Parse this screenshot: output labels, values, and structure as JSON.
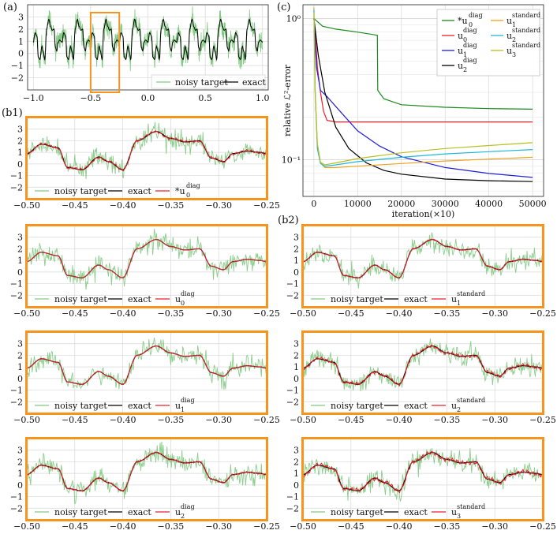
{
  "panel_labels": {
    "a": "(a)",
    "b1": "(b1)",
    "b2": "(b2)",
    "c": "(c)"
  },
  "legend_labels": {
    "noisy": "noisy target",
    "exact": "exact"
  },
  "chart_data": [
    {
      "id": "a",
      "type": "line",
      "title": "",
      "xlim": [
        -1.05,
        1.05
      ],
      "ylim": [
        -3.0,
        4.0
      ],
      "xticks": [
        -1.0,
        -0.5,
        0.0,
        0.5,
        1.0
      ],
      "xtick_labels": [
        "−1.0",
        "−0.5",
        "0.0",
        "0.5",
        "1.0"
      ],
      "yticks": [
        -2,
        -1,
        0,
        1,
        2,
        3
      ],
      "ytick_labels": [
        "−2",
        "−1",
        "0",
        "1",
        "2",
        "3"
      ],
      "series": [
        {
          "name": "noisy target",
          "color": "#5cb85c"
        },
        {
          "name": "exact",
          "color": "#000000"
        }
      ],
      "highlight_x_range": [
        -0.5,
        -0.25
      ],
      "highlight_color": "#f7941d",
      "legend_loc": "lower right"
    },
    {
      "id": "b1",
      "type": "line",
      "xlim": [
        -0.5,
        -0.25
      ],
      "ylim": [
        -3.0,
        4.0
      ],
      "xticks": [
        -0.5,
        -0.45,
        -0.4,
        -0.35,
        -0.3,
        -0.25
      ],
      "xtick_labels": [
        "−0.50",
        "−0.45",
        "−0.40",
        "−0.35",
        "−0.30",
        "−0.25"
      ],
      "yticks": [
        -2,
        -1,
        0,
        1,
        2,
        3
      ],
      "ytick_labels": [
        "−2",
        "−1",
        "0",
        "1",
        "2",
        "3"
      ],
      "series": [
        {
          "name": "noisy target",
          "color": "#5cb85c"
        },
        {
          "name": "exact",
          "color": "#000000"
        },
        {
          "name": "*u0 diag",
          "color": "#e8202a"
        }
      ],
      "fit_label": {
        "star": "*",
        "base": "u",
        "sub": "0",
        "sup": "diag"
      },
      "fit_quality": 0.35,
      "frame_color": "#f7941d"
    },
    {
      "id": "u0diag",
      "type": "line",
      "xlim": [
        -0.5,
        -0.25
      ],
      "ylim": [
        -3.0,
        4.0
      ],
      "xtick_labels": [
        "−0.50",
        "−0.45",
        "−0.40",
        "−0.35",
        "−0.30",
        "−0.25"
      ],
      "ytick_labels": [
        "−2",
        "−1",
        "0",
        "1",
        "2",
        "3"
      ],
      "fit_label": {
        "star": "",
        "base": "u",
        "sub": "0",
        "sup": "diag"
      },
      "fit_quality": 0.0,
      "frame_color": "#f7941d"
    },
    {
      "id": "u1std",
      "type": "line",
      "xlim": [
        -0.5,
        -0.25
      ],
      "ylim": [
        -3.0,
        4.0
      ],
      "xtick_labels": [
        "−0.50",
        "−0.45",
        "−0.40",
        "−0.35",
        "−0.30",
        "−0.25"
      ],
      "ytick_labels": [
        "−2",
        "−1",
        "0",
        "1",
        "2",
        "3"
      ],
      "fit_label": {
        "star": "",
        "base": "u",
        "sub": "1",
        "sup": "standard"
      },
      "fit_quality": 0.2,
      "frame_color": "#f7941d"
    },
    {
      "id": "u1diag",
      "type": "line",
      "xlim": [
        -0.5,
        -0.25
      ],
      "ylim": [
        -3.0,
        4.0
      ],
      "xtick_labels": [
        "−0.50",
        "−0.45",
        "−0.40",
        "−0.35",
        "−0.30",
        "−0.25"
      ],
      "ytick_labels": [
        "−2",
        "−1",
        "0",
        "1",
        "2",
        "3"
      ],
      "fit_label": {
        "star": "",
        "base": "u",
        "sub": "1",
        "sup": "diag"
      },
      "fit_quality": 0.12,
      "frame_color": "#f7941d"
    },
    {
      "id": "u2std",
      "type": "line",
      "xlim": [
        -0.5,
        -0.25
      ],
      "ylim": [
        -3.0,
        4.0
      ],
      "xtick_labels": [
        "−0.50",
        "−0.45",
        "−0.40",
        "−0.35",
        "−0.30",
        "−0.25"
      ],
      "ytick_labels": [
        "−2",
        "−1",
        "0",
        "1",
        "2",
        "3"
      ],
      "fit_label": {
        "star": "",
        "base": "u",
        "sub": "2",
        "sup": "standard"
      },
      "fit_quality": 0.45,
      "frame_color": "#f7941d"
    },
    {
      "id": "u2diag",
      "type": "line",
      "xlim": [
        -0.5,
        -0.25
      ],
      "ylim": [
        -3.0,
        4.0
      ],
      "xtick_labels": [
        "−0.50",
        "−0.45",
        "−0.40",
        "−0.35",
        "−0.30",
        "−0.25"
      ],
      "ytick_labels": [
        "−2",
        "−1",
        "0",
        "1",
        "2",
        "3"
      ],
      "fit_label": {
        "star": "",
        "base": "u",
        "sub": "2",
        "sup": "diag"
      },
      "fit_quality": 0.25,
      "frame_color": "#f7941d"
    },
    {
      "id": "u3std",
      "type": "line",
      "xlim": [
        -0.5,
        -0.25
      ],
      "ylim": [
        -3.0,
        4.0
      ],
      "xtick_labels": [
        "−0.50",
        "−0.45",
        "−0.40",
        "−0.35",
        "−0.30",
        "−0.25"
      ],
      "ytick_labels": [
        "−2",
        "−1",
        "0",
        "1",
        "2",
        "3"
      ],
      "fit_label": {
        "star": "",
        "base": "u",
        "sub": "3",
        "sup": "standard"
      },
      "fit_quality": 0.55,
      "frame_color": "#f7941d"
    },
    {
      "id": "c",
      "type": "line",
      "yscale": "log",
      "xlabel": "iteration(×10)",
      "ylabel": "relative ℒ²-error",
      "xlim": [
        -2500,
        52500
      ],
      "ylim": [
        0.055,
        1.25
      ],
      "xticks": [
        0,
        10000,
        20000,
        30000,
        40000,
        50000
      ],
      "xtick_labels": [
        "0",
        "10000",
        "20000",
        "30000",
        "40000",
        "50000"
      ],
      "ytick_labels": [
        "10⁰",
        "10⁻¹"
      ],
      "series": [
        {
          "name": "*u0 diag",
          "star": "*",
          "sub": "0",
          "sup": "diag",
          "color": "#1a8a1a",
          "x": [
            0,
            2000,
            5000,
            10000,
            14500,
            14600,
            16000,
            20000,
            30000,
            40000,
            50000
          ],
          "y": [
            1.0,
            0.88,
            0.84,
            0.8,
            0.76,
            0.31,
            0.27,
            0.245,
            0.235,
            0.23,
            0.228
          ]
        },
        {
          "name": "u0 diag",
          "star": "",
          "sub": "0",
          "sup": "diag",
          "color": "#e8202a",
          "x": [
            0,
            400,
            800,
            1500,
            2200,
            3000,
            5000,
            10000,
            30000,
            50000
          ],
          "y": [
            1.0,
            0.7,
            0.45,
            0.3,
            0.22,
            0.19,
            0.185,
            0.185,
            0.185,
            0.185
          ]
        },
        {
          "name": "u1 diag",
          "star": "",
          "sub": "1",
          "sup": "diag",
          "color": "#1f1fd6",
          "x": [
            0,
            600,
            1500,
            3000,
            6000,
            10000,
            15000,
            20000,
            30000,
            40000,
            50000
          ],
          "y": [
            1.0,
            0.45,
            0.31,
            0.28,
            0.22,
            0.16,
            0.125,
            0.105,
            0.088,
            0.08,
            0.075
          ]
        },
        {
          "name": "u2 diag",
          "star": "",
          "sub": "2",
          "sup": "diag",
          "color": "#000000",
          "x": [
            0,
            1000,
            2500,
            5000,
            8000,
            12000,
            16000,
            20000,
            30000,
            40000,
            50000
          ],
          "y": [
            1.0,
            0.55,
            0.3,
            0.17,
            0.12,
            0.095,
            0.084,
            0.079,
            0.073,
            0.071,
            0.07
          ]
        },
        {
          "name": "u1 standard",
          "star": "",
          "sub": "1",
          "sup": "standard",
          "color": "#f0a020",
          "x": [
            0,
            300,
            800,
            1500,
            2500,
            5000,
            10000,
            20000,
            30000,
            40000,
            50000
          ],
          "y": [
            1.2,
            0.3,
            0.12,
            0.095,
            0.088,
            0.088,
            0.09,
            0.094,
            0.098,
            0.101,
            0.104
          ]
        },
        {
          "name": "u2 standard",
          "star": "",
          "sub": "2",
          "sup": "standard",
          "color": "#20b8d8",
          "x": [
            0,
            300,
            800,
            1500,
            2500,
            5000,
            10000,
            20000,
            30000,
            40000,
            50000
          ],
          "y": [
            1.15,
            0.3,
            0.12,
            0.094,
            0.09,
            0.092,
            0.097,
            0.104,
            0.11,
            0.114,
            0.118
          ]
        },
        {
          "name": "u3 standard",
          "star": "",
          "sub": "3",
          "sup": "standard",
          "color": "#b8c020",
          "x": [
            0,
            300,
            800,
            1500,
            2500,
            5000,
            10000,
            20000,
            30000,
            40000,
            50000
          ],
          "y": [
            1.1,
            0.3,
            0.13,
            0.096,
            0.092,
            0.095,
            0.102,
            0.112,
            0.12,
            0.126,
            0.132
          ]
        }
      ],
      "legend_loc": "top-right"
    }
  ]
}
